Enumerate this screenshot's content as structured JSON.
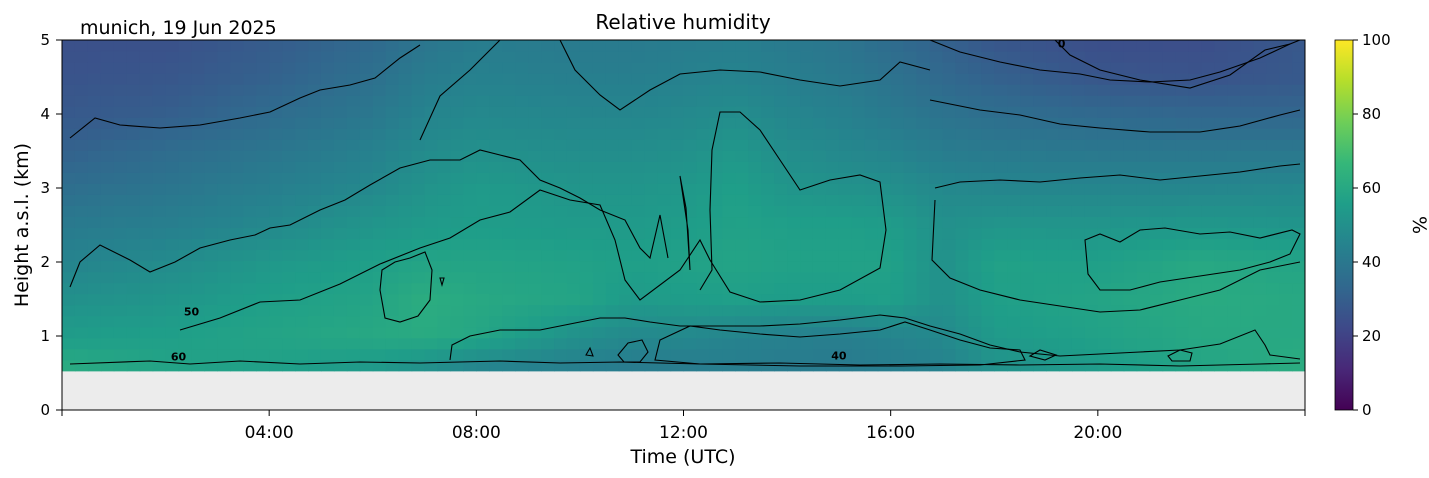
{
  "chart_data": {
    "type": "heatmap",
    "title": "Relative humidity",
    "subtitle": "munich, 19 Jun 2025",
    "xlabel": "Time (UTC)",
    "ylabel": "Height a.s.l. (km)",
    "x_ticks": [
      "04:00",
      "08:00",
      "12:00",
      "16:00",
      "20:00"
    ],
    "x_tick_hours": [
      4,
      8,
      12,
      16,
      20
    ],
    "xlim_hours": [
      0,
      24
    ],
    "y_ticks": [
      "0",
      "1",
      "2",
      "3",
      "4",
      "5"
    ],
    "ylim": [
      0,
      5
    ],
    "data_bottom_km": 0.53,
    "no_data_color": "#ececec",
    "colorbar": {
      "label": "%",
      "ticks": [
        "0",
        "20",
        "40",
        "60",
        "80",
        "100"
      ],
      "range": [
        0,
        100
      ],
      "colormap": "viridis",
      "stops": [
        "#440154",
        "#482878",
        "#3e4989",
        "#31688e",
        "#26828e",
        "#1f9e89",
        "#35b779",
        "#6ece58",
        "#b5de2b",
        "#fde725"
      ]
    },
    "contour_levels": [
      40,
      50,
      60
    ],
    "contour_labels": [
      {
        "text": "60",
        "x_hours": 2.25,
        "y_km": 0.67
      },
      {
        "text": "50",
        "x_hours": 2.5,
        "y_km": 1.28
      },
      {
        "text": "40",
        "x_hours": 15.0,
        "y_km": 0.68
      },
      {
        "text": "0",
        "x_hours": 19.3,
        "y_km": 4.9
      }
    ],
    "rh_profile": {
      "x_hours": [
        0,
        2,
        4,
        6,
        7,
        8,
        10,
        11,
        12,
        13,
        14,
        15,
        16,
        17,
        18,
        20,
        22,
        24
      ],
      "y_km": [
        0.55,
        1.0,
        1.5,
        2.0,
        2.5,
        3.0,
        3.5,
        4.0,
        4.5,
        5.0
      ],
      "values": [
        [
          62,
          58,
          56,
          53,
          49,
          44,
          42,
          41,
          41,
          42,
          41,
          41,
          42,
          44,
          50,
          54,
          58,
          62
        ],
        [
          55,
          56,
          58,
          60,
          61,
          59,
          50,
          47,
          47,
          45,
          44,
          43,
          45,
          47,
          54,
          57,
          60,
          60
        ],
        [
          50,
          52,
          56,
          58,
          62,
          60,
          58,
          54,
          55,
          56,
          55,
          55,
          56,
          50,
          56,
          58,
          61,
          60
        ],
        [
          45,
          48,
          53,
          56,
          58,
          58,
          57,
          56,
          57,
          58,
          57,
          57,
          57,
          50,
          57,
          56,
          60,
          58
        ],
        [
          41,
          43,
          47,
          52,
          54,
          55,
          54,
          54,
          55,
          57,
          56,
          56,
          55,
          50,
          52,
          52,
          53,
          52
        ],
        [
          36,
          39,
          43,
          47,
          51,
          54,
          52,
          52,
          53,
          56,
          52,
          51,
          50,
          47,
          46,
          46,
          46,
          47
        ],
        [
          31,
          35,
          39,
          44,
          48,
          50,
          49,
          49,
          50,
          53,
          49,
          47,
          45,
          42,
          41,
          40,
          40,
          40
        ],
        [
          28,
          30,
          35,
          40,
          45,
          47,
          46,
          46,
          47,
          49,
          46,
          44,
          41,
          38,
          36,
          34,
          33,
          33
        ],
        [
          26,
          27,
          31,
          37,
          42,
          44,
          43,
          43,
          44,
          45,
          43,
          41,
          38,
          34,
          31,
          27,
          26,
          28
        ],
        [
          25,
          25,
          29,
          34,
          39,
          42,
          41,
          41,
          42,
          43,
          41,
          39,
          35,
          31,
          27,
          24,
          24,
          28
        ]
      ]
    }
  }
}
